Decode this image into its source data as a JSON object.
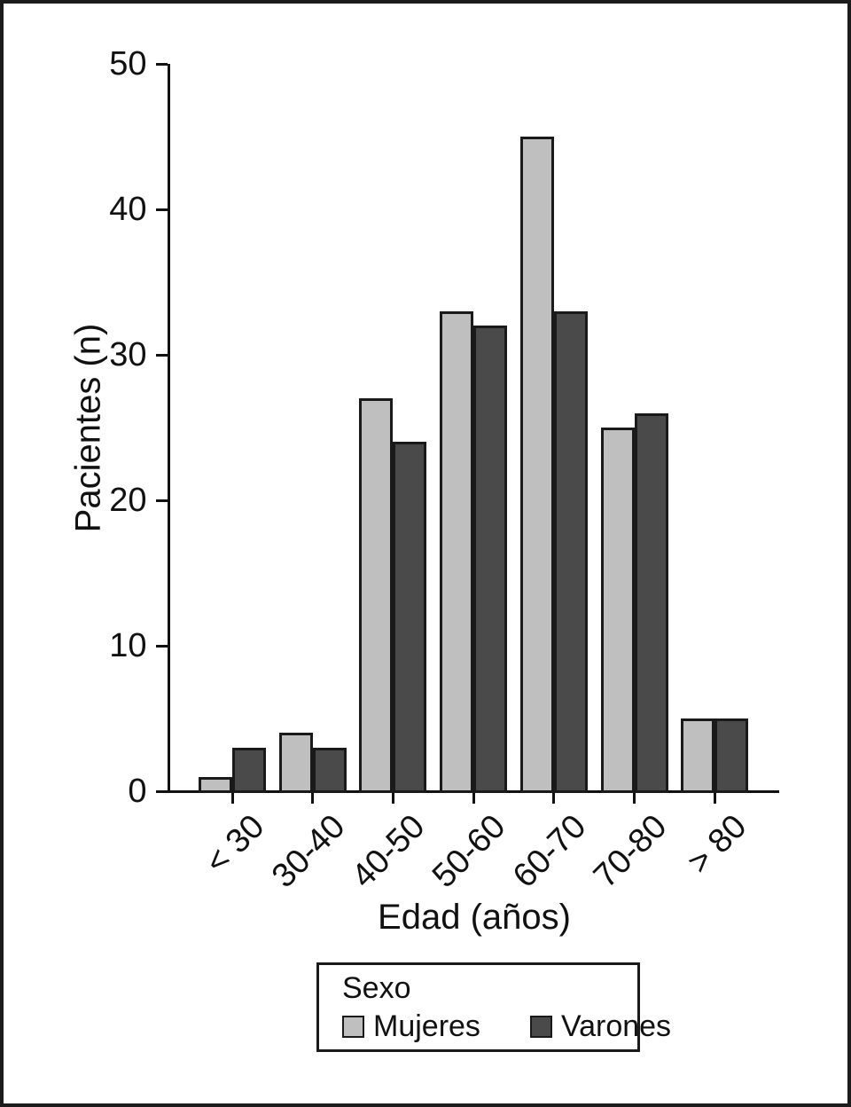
{
  "chart_data": {
    "type": "bar",
    "title": "",
    "categories": [
      "< 30",
      "30-40",
      "40-50",
      "50-60",
      "60-70",
      "70-80",
      "> 80"
    ],
    "series": [
      {
        "name": "Mujeres",
        "color": "#bfbfbf",
        "values": [
          1,
          4,
          27,
          33,
          45,
          25,
          5
        ]
      },
      {
        "name": "Varones",
        "color": "#4a4a4a",
        "values": [
          3,
          3,
          24,
          32,
          33,
          26,
          5
        ]
      }
    ],
    "xlabel": "Edad (años)",
    "ylabel": "Pacientes (n)",
    "ylim": [
      0,
      50
    ],
    "yticks": [
      0,
      10,
      20,
      30,
      40,
      50
    ],
    "grid": false,
    "bar_outline_color": "#1a1a1a",
    "legend": {
      "title": "Sexo",
      "position": "below-x-axis"
    }
  }
}
